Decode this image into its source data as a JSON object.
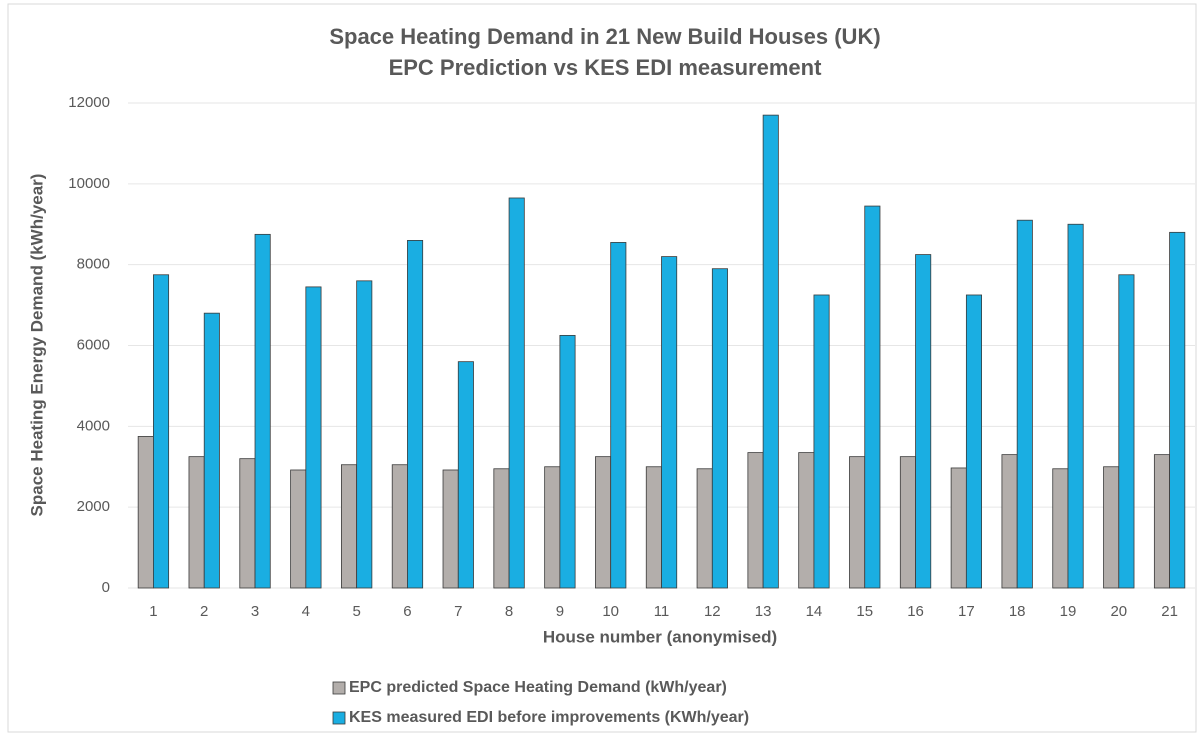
{
  "chart_data": {
    "type": "bar",
    "title": "Space Heating Demand in 21 New Build Houses (UK)",
    "subtitle": "EPC Prediction vs KES EDI measurement",
    "x_label": "House number (anonymised)",
    "y_label": "Space Heating Energy Demand (kWh/year)",
    "categories": [
      "1",
      "2",
      "3",
      "4",
      "5",
      "6",
      "7",
      "8",
      "9",
      "10",
      "11",
      "12",
      "13",
      "14",
      "15",
      "16",
      "17",
      "18",
      "19",
      "20",
      "21"
    ],
    "series": [
      {
        "name": "EPC predicted Space Heating Demand (kWh/year)",
        "color": "#b3aeab",
        "values": [
          3750,
          3250,
          3200,
          2920,
          3050,
          3050,
          2920,
          2950,
          3000,
          3250,
          3000,
          2950,
          3350,
          3350,
          3250,
          3250,
          2970,
          3300,
          2950,
          3000,
          3300
        ]
      },
      {
        "name": "KES measured EDI before improvements (KWh/year)",
        "color": "#1aaee2",
        "values": [
          7750,
          6800,
          8750,
          7450,
          7600,
          8600,
          5600,
          9650,
          6250,
          8550,
          8200,
          7900,
          11700,
          7250,
          9450,
          8250,
          7250,
          9100,
          9000,
          7750,
          8800
        ]
      }
    ],
    "ylim": [
      0,
      12000
    ],
    "yticks": [
      0,
      2000,
      4000,
      6000,
      8000,
      10000,
      12000
    ],
    "grid": true,
    "legend": "bottom"
  }
}
